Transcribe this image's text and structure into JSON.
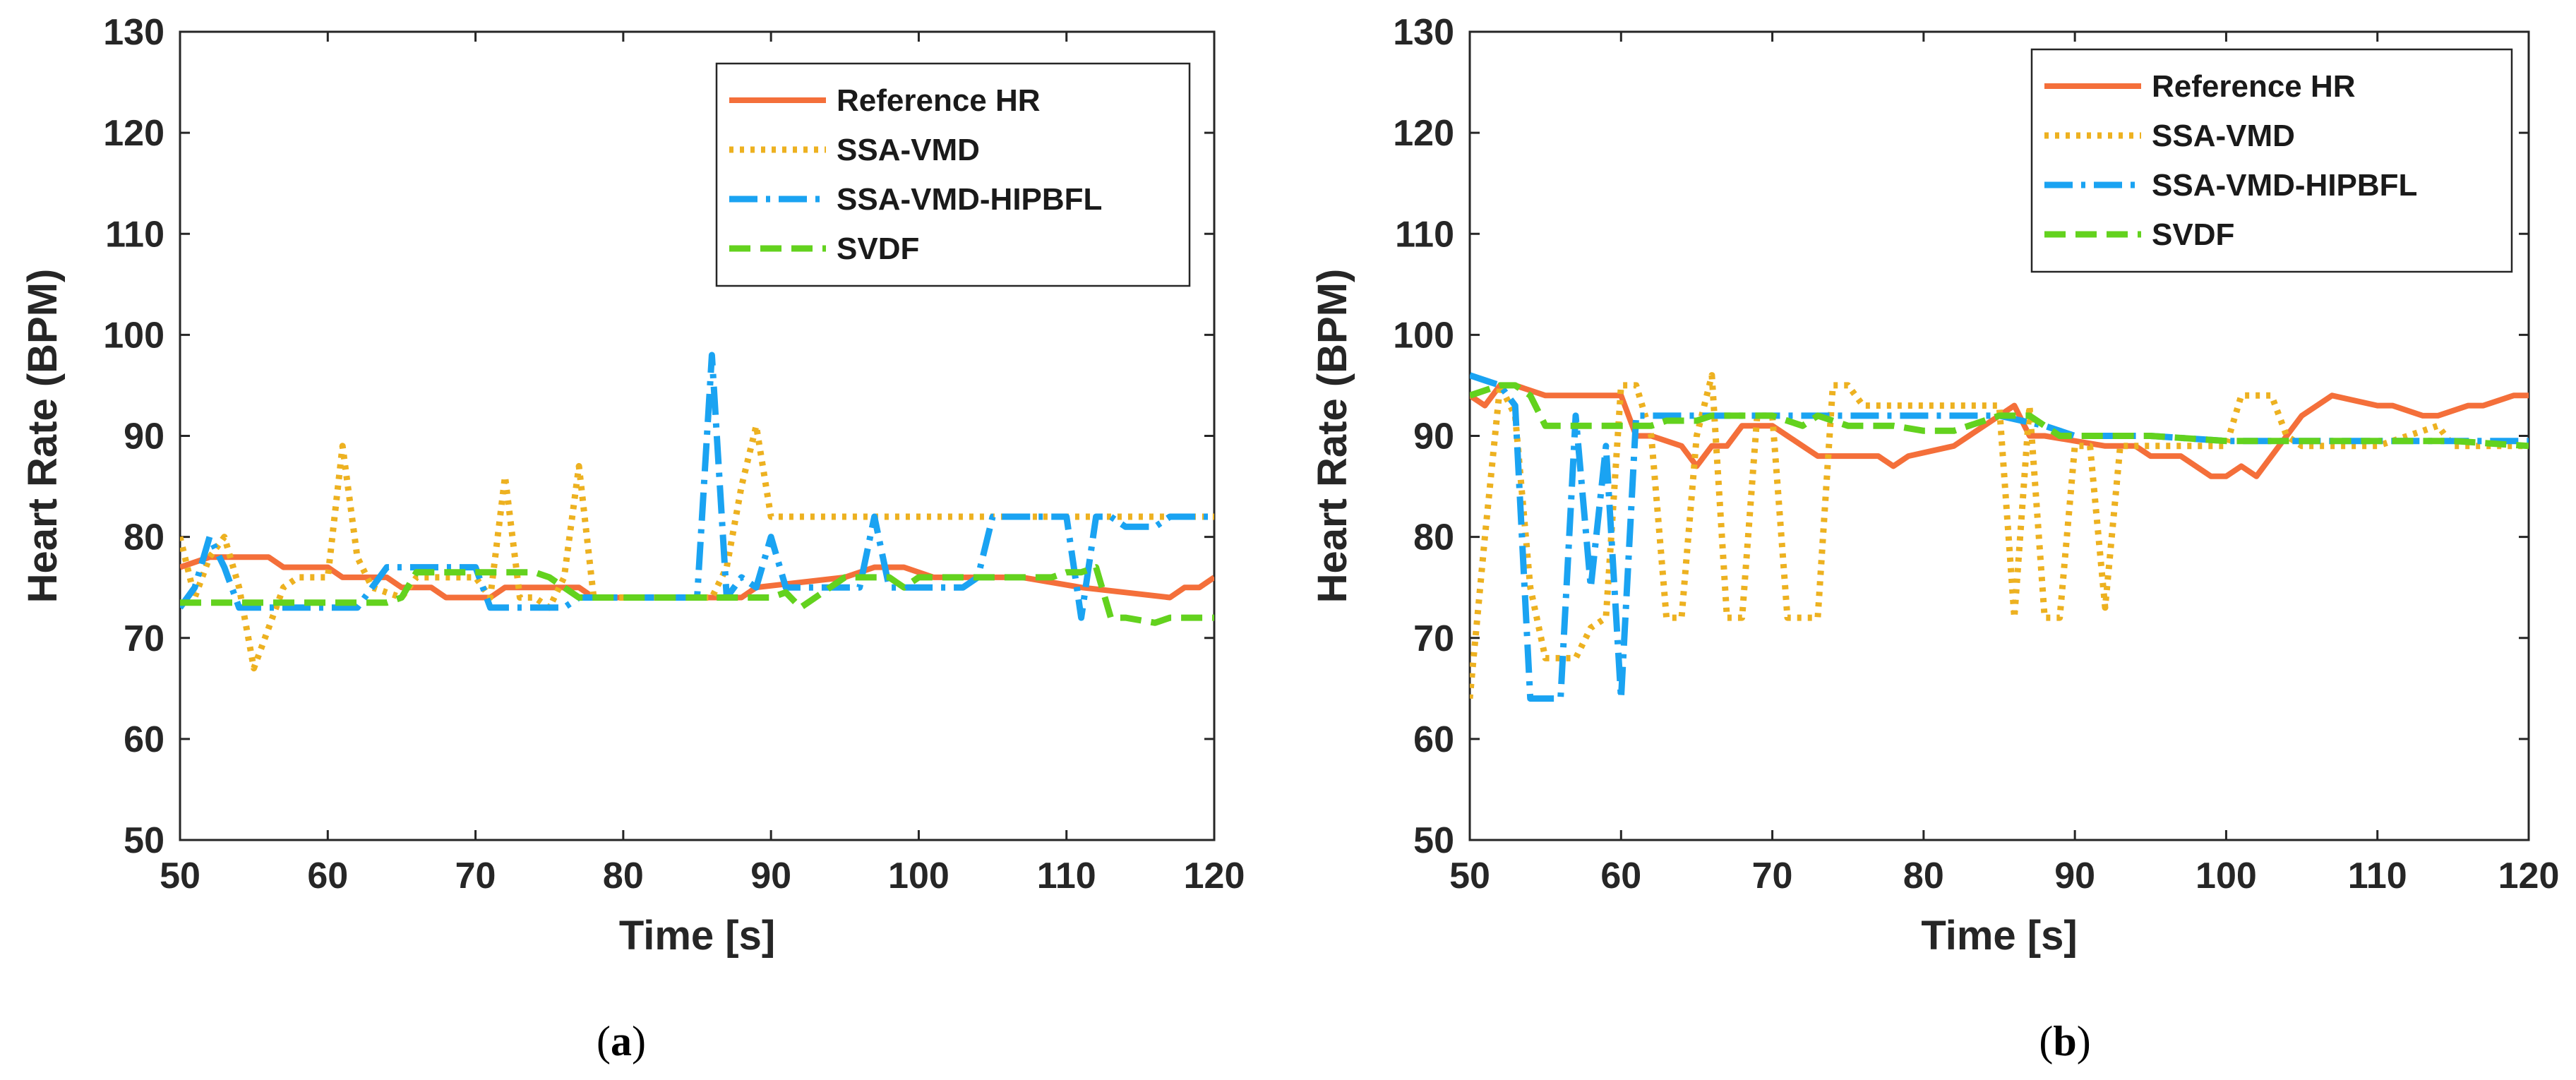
{
  "chart_data": [
    {
      "type": "line",
      "caption": "a",
      "xlabel": "Time [s]",
      "ylabel": "Heart Rate (BPM)",
      "xlim": [
        50,
        120
      ],
      "ylim": [
        50,
        130
      ],
      "xticks": [
        50,
        60,
        70,
        80,
        90,
        100,
        110,
        120
      ],
      "yticks": [
        50,
        60,
        70,
        80,
        90,
        100,
        110,
        120,
        130
      ],
      "grid": false,
      "legend_position": "top-right",
      "series": [
        {
          "name": "Reference HR",
          "color": "#F46F3A",
          "style": "solid",
          "x": [
            50,
            52,
            53,
            56,
            57,
            60,
            61,
            64,
            65,
            67,
            68,
            71,
            72,
            77,
            78,
            88,
            89,
            95,
            97,
            99,
            101,
            107,
            111,
            117,
            118,
            119,
            120
          ],
          "y": [
            77,
            78,
            78,
            78,
            77,
            77,
            76,
            76,
            75,
            75,
            74,
            74,
            75,
            75,
            74,
            74,
            75,
            76,
            77,
            77,
            76,
            76,
            75,
            74,
            75,
            75,
            76
          ]
        },
        {
          "name": "SSA-VMD",
          "color": "#EDB120",
          "style": "dotted",
          "x": [
            50,
            51,
            52,
            53,
            54,
            55,
            56,
            57,
            58,
            60,
            61,
            62,
            63,
            65,
            66,
            67,
            70,
            71,
            72,
            73,
            74,
            75,
            76,
            77,
            78,
            79,
            85,
            86,
            87,
            88,
            89,
            90,
            91,
            100,
            110,
            120
          ],
          "y": [
            80,
            74,
            78,
            80,
            75,
            67,
            71,
            75,
            76,
            76,
            89,
            78,
            75,
            74,
            76,
            76,
            76,
            74,
            86,
            74,
            74,
            73,
            76,
            87,
            74,
            74,
            74,
            74,
            77,
            85,
            91,
            82,
            82,
            82,
            82,
            82
          ]
        },
        {
          "name": "SSA-VMD-HIPBFL",
          "color": "#1AA3F2",
          "style": "dashdot",
          "x": [
            50,
            51,
            52,
            53,
            54,
            55,
            60,
            61,
            62,
            64,
            66,
            70,
            71,
            72,
            76,
            77,
            85,
            86,
            87,
            88,
            89,
            90,
            91,
            93,
            96,
            97,
            98,
            103,
            104,
            105,
            108,
            110,
            111,
            112,
            113,
            114,
            116,
            117,
            120
          ],
          "y": [
            73,
            75,
            80,
            77,
            73,
            73,
            73,
            73,
            73,
            77,
            77,
            77,
            73,
            73,
            73,
            74,
            74,
            98,
            74,
            76,
            75,
            80,
            75,
            75,
            75,
            82,
            75,
            75,
            76,
            82,
            82,
            82,
            72,
            82,
            82,
            81,
            81,
            82,
            82
          ]
        },
        {
          "name": "SVDF",
          "color": "#63D21E",
          "style": "dashed",
          "x": [
            50,
            56,
            64,
            65,
            66,
            70,
            74,
            75,
            77,
            90,
            91,
            92,
            95,
            98,
            99,
            100,
            109,
            110,
            111,
            112,
            113,
            114,
            116,
            117,
            120
          ],
          "y": [
            73.5,
            73.5,
            73.5,
            74,
            76.5,
            76.5,
            76.5,
            76,
            74,
            74,
            74.5,
            73,
            76,
            76,
            75,
            76,
            76,
            76.5,
            76.5,
            77,
            72,
            72,
            71.5,
            72,
            72
          ]
        }
      ]
    },
    {
      "type": "line",
      "caption": "b",
      "xlabel": "Time [s]",
      "ylabel": "Heart Rate (BPM)",
      "xlim": [
        50,
        120
      ],
      "ylim": [
        50,
        130
      ],
      "xticks": [
        50,
        60,
        70,
        80,
        90,
        100,
        110,
        120
      ],
      "yticks": [
        50,
        60,
        70,
        80,
        90,
        100,
        110,
        120,
        130
      ],
      "grid": false,
      "legend_position": "top-right",
      "series": [
        {
          "name": "Reference HR",
          "color": "#F46F3A",
          "style": "solid",
          "x": [
            50,
            51,
            52,
            53,
            55,
            56,
            60,
            61,
            62,
            64,
            65,
            66,
            67,
            68,
            70,
            71,
            73,
            77,
            78,
            79,
            82,
            83,
            85,
            86,
            87,
            88,
            92,
            94,
            95,
            97,
            99,
            100,
            101,
            102,
            103,
            104,
            105,
            107,
            110,
            111,
            113,
            114,
            116,
            117,
            119,
            120
          ],
          "y": [
            94,
            93,
            95,
            95,
            94,
            94,
            94,
            90,
            90,
            89,
            87,
            89,
            89,
            91,
            91,
            90,
            88,
            88,
            87,
            88,
            89,
            90,
            92,
            93,
            90,
            90,
            89,
            89,
            88,
            88,
            86,
            86,
            87,
            86,
            88,
            90,
            92,
            94,
            93,
            93,
            92,
            92,
            93,
            93,
            94,
            94
          ]
        },
        {
          "name": "SSA-VMD",
          "color": "#EDB120",
          "style": "dotted",
          "x": [
            50,
            51,
            52,
            53,
            54,
            55,
            56,
            57,
            58,
            59,
            60,
            61,
            62,
            63,
            64,
            65,
            66,
            67,
            68,
            69,
            70,
            71,
            72,
            73,
            74,
            75,
            76,
            77,
            78,
            79,
            80,
            84,
            85,
            86,
            87,
            88,
            89,
            90,
            91,
            92,
            93,
            99,
            100,
            101,
            103,
            104,
            105,
            110,
            114,
            115,
            120
          ],
          "y": [
            64,
            80,
            95,
            92,
            75,
            68,
            68,
            68,
            71,
            72,
            95,
            95,
            90,
            72,
            72,
            90,
            96,
            72,
            72,
            92,
            92,
            72,
            72,
            72,
            95,
            95,
            93,
            93,
            93,
            93,
            93,
            93,
            93,
            72,
            93,
            72,
            72,
            89,
            89,
            73,
            89,
            89,
            89,
            94,
            94,
            90,
            89,
            89,
            91,
            89,
            89
          ]
        },
        {
          "name": "SSA-VMD-HIPBFL",
          "color": "#1AA3F2",
          "style": "dashdot",
          "x": [
            50,
            51,
            52,
            53,
            54,
            55,
            56,
            57,
            58,
            59,
            60,
            61,
            62,
            63,
            64,
            65,
            70,
            75,
            80,
            85,
            88,
            90,
            95,
            100,
            105,
            110,
            115,
            120
          ],
          "y": [
            96,
            95.5,
            95,
            93,
            64,
            64,
            64,
            92,
            75,
            89,
            64,
            92,
            92,
            92,
            92,
            92,
            92,
            92,
            92,
            92,
            91,
            90,
            90,
            89.5,
            89.5,
            89.5,
            89.5,
            89.5
          ]
        },
        {
          "name": "SVDF",
          "color": "#63D21E",
          "style": "dashed",
          "x": [
            50,
            52,
            53,
            54,
            55,
            58,
            60,
            62,
            63,
            65,
            66,
            67,
            70,
            72,
            73,
            75,
            77,
            78,
            80,
            82,
            83,
            85,
            87,
            89,
            92,
            95,
            100,
            105,
            110,
            115,
            120
          ],
          "y": [
            94,
            95,
            95,
            94,
            91,
            91,
            91,
            91,
            91.5,
            91.5,
            92,
            92,
            92,
            91,
            92,
            91,
            91,
            91,
            90.5,
            90.5,
            91,
            92,
            92,
            90,
            90,
            90,
            89.5,
            89.5,
            89.5,
            89.5,
            89
          ]
        }
      ]
    }
  ]
}
